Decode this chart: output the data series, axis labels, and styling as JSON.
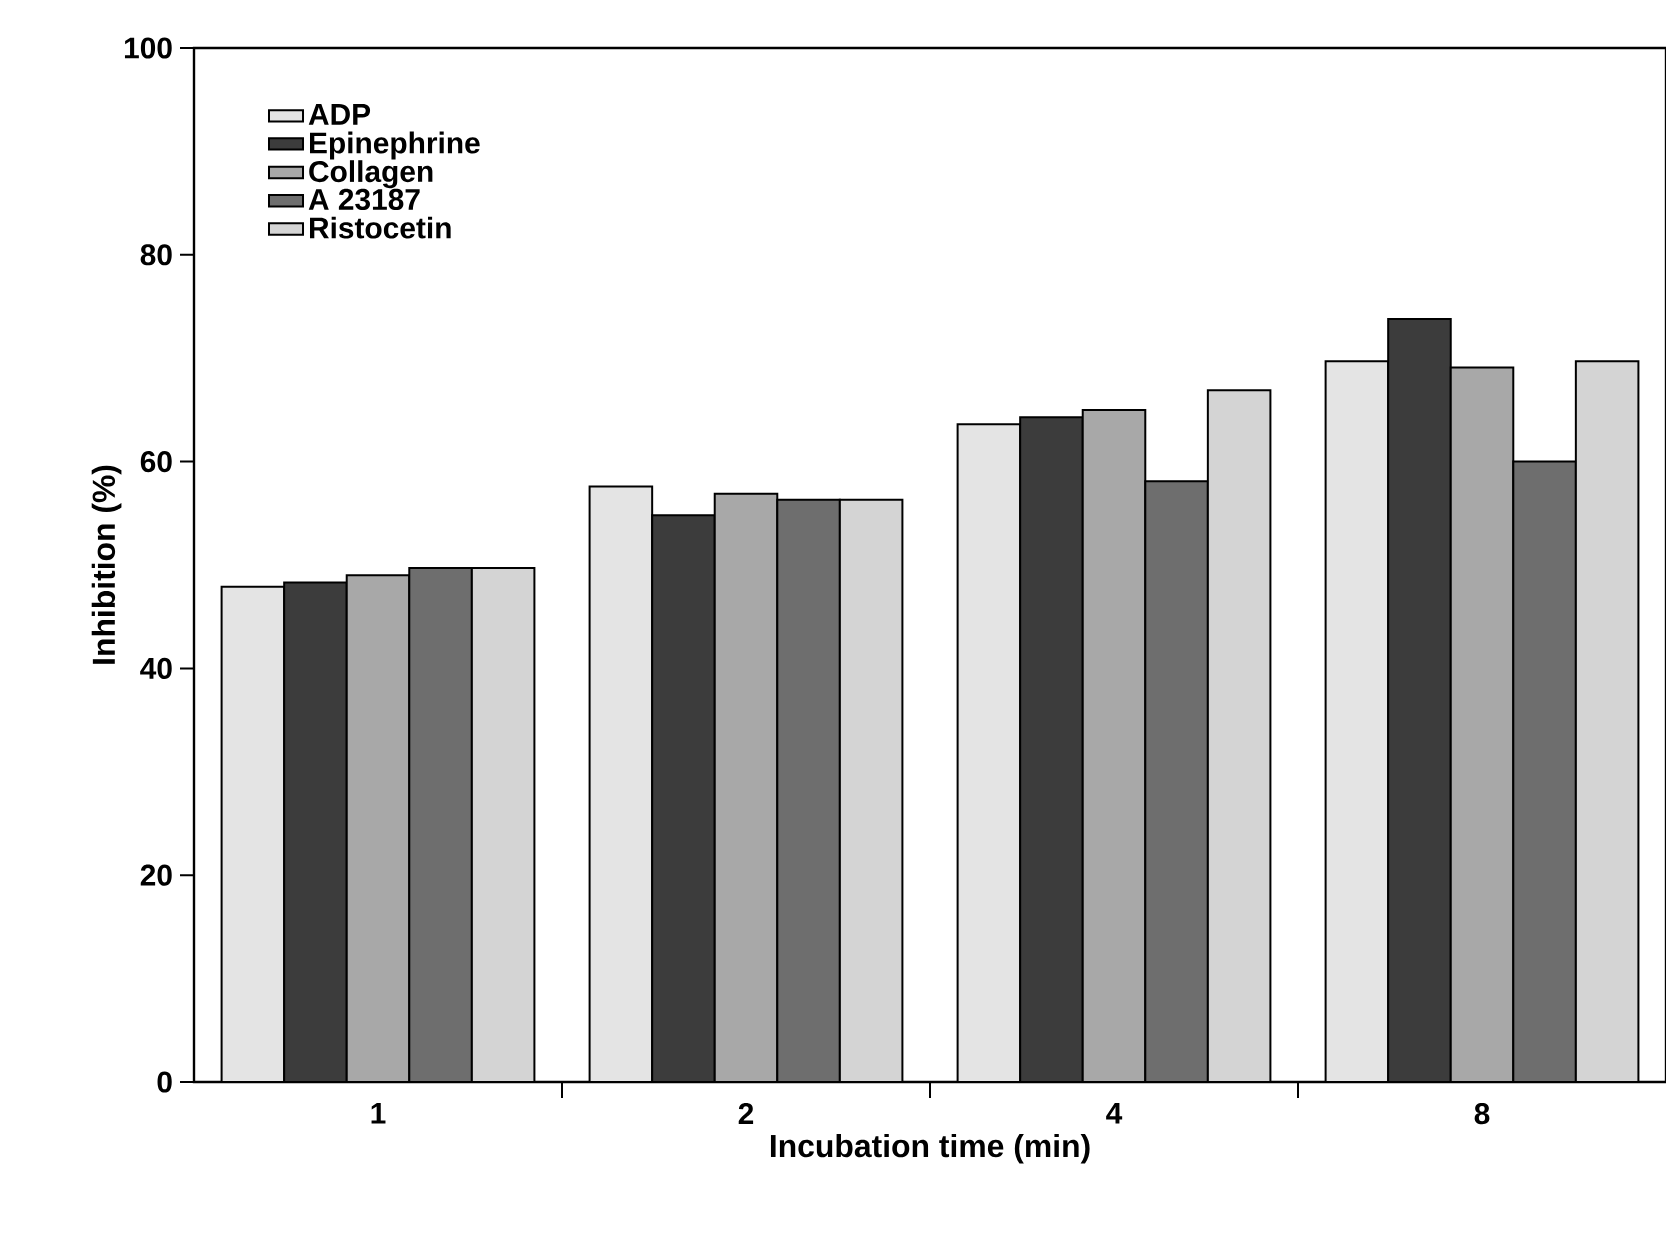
{
  "chart_data": {
    "type": "bar",
    "xlabel": "Incubation time (min)",
    "ylabel": "Inhibition (%)",
    "categories": [
      "1",
      "2",
      "4",
      "8"
    ],
    "series": [
      {
        "name": "ADP",
        "color": "#e4e4e4",
        "values": [
          47.9,
          57.6,
          63.6,
          69.7
        ]
      },
      {
        "name": "Epinephrine",
        "color": "#3c3c3c",
        "values": [
          48.3,
          54.8,
          64.3,
          73.8
        ]
      },
      {
        "name": "Collagen",
        "color": "#a8a8a8",
        "values": [
          49.0,
          56.9,
          65.0,
          69.1
        ]
      },
      {
        "name": "A 23187",
        "color": "#6e6e6e",
        "values": [
          49.7,
          56.3,
          58.1,
          60.0
        ]
      },
      {
        "name": "Ristocetin",
        "color": "#d4d4d4",
        "values": [
          49.7,
          56.3,
          66.9,
          69.7
        ]
      }
    ],
    "ylim": [
      0,
      100
    ],
    "yticks": [
      0,
      20,
      40,
      60,
      80,
      100
    ],
    "grid": false,
    "legend": "top left"
  }
}
